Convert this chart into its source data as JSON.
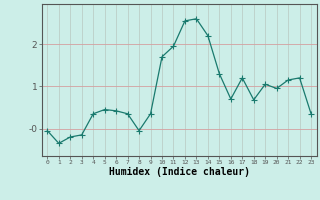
{
  "x": [
    0,
    1,
    2,
    3,
    4,
    5,
    6,
    7,
    8,
    9,
    10,
    11,
    12,
    13,
    14,
    15,
    16,
    17,
    18,
    19,
    20,
    21,
    22,
    23
  ],
  "y": [
    -0.05,
    -0.35,
    -0.2,
    -0.15,
    0.35,
    0.45,
    0.42,
    0.35,
    -0.05,
    0.35,
    1.7,
    1.95,
    2.55,
    2.6,
    2.2,
    1.3,
    0.7,
    1.2,
    0.68,
    1.05,
    0.95,
    1.15,
    1.2,
    0.35
  ],
  "line_color": "#1a7a6e",
  "marker": "D",
  "marker_size": 2.2,
  "bg_color": "#cceee8",
  "grid_color_v": "#b8c8c0",
  "grid_color_h": "#d4a0a0",
  "axis_color": "#555555",
  "xlabel": "Humidex (Indice chaleur)",
  "xlabel_fontsize": 7,
  "yticks": [
    0,
    1,
    2
  ],
  "ytick_labels": [
    "-0",
    "1",
    "2"
  ],
  "ylim": [
    -0.65,
    2.95
  ],
  "xlim": [
    -0.5,
    23.5
  ],
  "title": ""
}
